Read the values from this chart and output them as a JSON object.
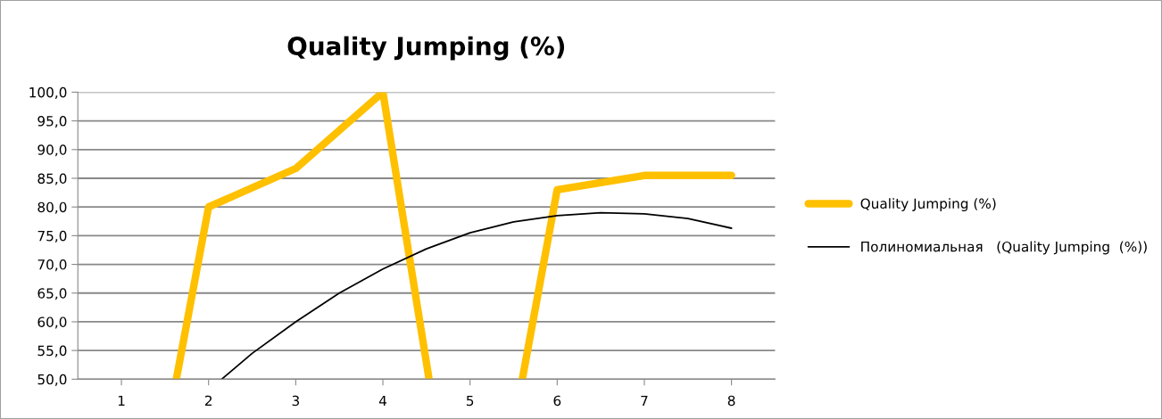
{
  "chart_data": {
    "type": "line",
    "title": "Quality Jumping (%)",
    "series": [
      {
        "name": "Quality Jumping (%)",
        "color": "#ffc000",
        "x": [
          1.63,
          2,
          3,
          4,
          4.53,
          5,
          5.6,
          6,
          7,
          8
        ],
        "values": [
          50,
          80,
          86.7,
          100,
          50,
          null,
          50,
          83,
          85.5,
          85.5
        ]
      },
      {
        "name": "Полиномиальная   (Quality Jumping  (%))",
        "color": "#000000",
        "x": [
          2.15,
          2.5,
          3,
          3.5,
          4,
          4.5,
          5,
          5.5,
          6,
          6.5,
          7,
          7.5,
          8
        ],
        "values": [
          50,
          54.5,
          60,
          65,
          69.2,
          72.7,
          75.5,
          77.4,
          78.5,
          79,
          78.8,
          78,
          76.3
        ]
      }
    ],
    "xlim": [
      0.5,
      8.5
    ],
    "xticks": [
      1,
      2,
      3,
      4,
      5,
      6,
      7,
      8
    ],
    "ylim": [
      50,
      100
    ],
    "yticks": [
      {
        "value": 50,
        "label": "50,0"
      },
      {
        "value": 55,
        "label": "55,0"
      },
      {
        "value": 60,
        "label": "60,0"
      },
      {
        "value": 65,
        "label": "65,0"
      },
      {
        "value": 70,
        "label": "70,0"
      },
      {
        "value": 75,
        "label": "75,0"
      },
      {
        "value": 80,
        "label": "80,0"
      },
      {
        "value": 85,
        "label": "85,0"
      },
      {
        "value": 90,
        "label": "90,0"
      },
      {
        "value": 95,
        "label": "95,0"
      },
      {
        "value": 100,
        "label": "100,0"
      }
    ],
    "grid": "y",
    "legend": "right",
    "marker": "none"
  }
}
